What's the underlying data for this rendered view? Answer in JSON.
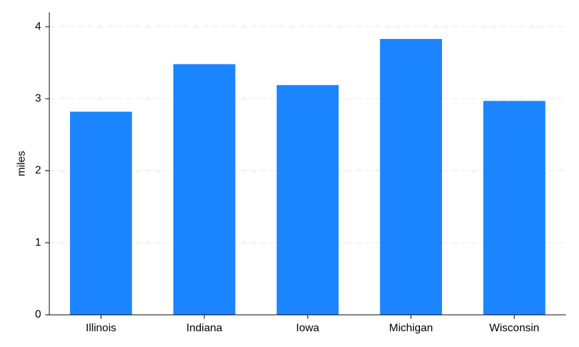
{
  "chart_data": {
    "type": "bar",
    "title": "",
    "xlabel": "",
    "ylabel": "miles",
    "categories": [
      "Illinois",
      "Indiana",
      "Iowa",
      "Michigan",
      "Wisconsin"
    ],
    "values": [
      2.82,
      3.48,
      3.19,
      3.83,
      2.97
    ],
    "ylim": [
      0,
      4.2
    ],
    "yticks": [
      "0",
      "1",
      "2",
      "3",
      "4"
    ],
    "grid": true,
    "legend": "none",
    "colors": {
      "bar": "#1a85ff",
      "grid": "#e6e6e6",
      "axis": "#000000"
    }
  }
}
